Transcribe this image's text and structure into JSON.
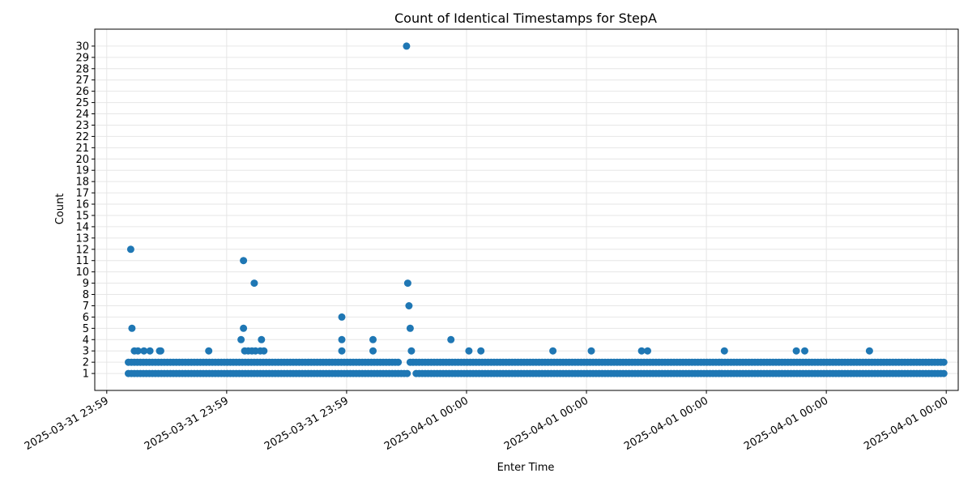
{
  "chart_data": {
    "type": "scatter",
    "title": "Count of Identical Timestamps for StepA",
    "xlabel": "Enter Time",
    "ylabel": "Count",
    "x_tick_labels": [
      "2025-03-31 23:59",
      "2025-03-31 23:59",
      "2025-03-31 23:59",
      "2025-04-01 00:00",
      "2025-04-01 00:00",
      "2025-04-01 00:00",
      "2025-04-01 00:00",
      "2025-04-01 00:00"
    ],
    "x_tick_values": [
      0,
      1,
      2,
      3,
      4,
      5,
      6,
      7
    ],
    "xlim": [
      -0.1,
      7.1
    ],
    "yticks": [
      1,
      2,
      3,
      4,
      5,
      6,
      7,
      8,
      9,
      10,
      11,
      12,
      13,
      14,
      15,
      16,
      17,
      18,
      19,
      20,
      21,
      22,
      23,
      24,
      25,
      26,
      27,
      28,
      29,
      30
    ],
    "ylim": [
      -0.5,
      31.5
    ],
    "grid": true,
    "color": "#1f77b4",
    "x_note": "x values are positions on the time axis in units of one major tick interval from the first tick",
    "baseline": {
      "x_range": [
        0.18,
        7.0
      ],
      "levels": [
        1,
        2
      ],
      "gaps": [
        [
          2.44,
          2.52
        ],
        [
          2.52,
          2.56
        ]
      ]
    },
    "points": [
      [
        0.2,
        12
      ],
      [
        0.21,
        5
      ],
      [
        0.23,
        3
      ],
      [
        0.26,
        3
      ],
      [
        0.31,
        3
      ],
      [
        0.36,
        3
      ],
      [
        0.44,
        3
      ],
      [
        0.45,
        3
      ],
      [
        0.85,
        3
      ],
      [
        1.12,
        4
      ],
      [
        1.14,
        11
      ],
      [
        1.14,
        5
      ],
      [
        1.15,
        3
      ],
      [
        1.18,
        3
      ],
      [
        1.21,
        3
      ],
      [
        1.23,
        9
      ],
      [
        1.24,
        3
      ],
      [
        1.28,
        3
      ],
      [
        1.29,
        4
      ],
      [
        1.31,
        3
      ],
      [
        1.96,
        6
      ],
      [
        1.96,
        4
      ],
      [
        1.96,
        3
      ],
      [
        2.22,
        4
      ],
      [
        2.22,
        3
      ],
      [
        2.5,
        30
      ],
      [
        2.51,
        9
      ],
      [
        2.52,
        7
      ],
      [
        2.53,
        5
      ],
      [
        2.54,
        3
      ],
      [
        2.87,
        4
      ],
      [
        3.02,
        3
      ],
      [
        3.12,
        3
      ],
      [
        3.72,
        3
      ],
      [
        4.04,
        3
      ],
      [
        4.46,
        3
      ],
      [
        4.51,
        3
      ],
      [
        5.15,
        3
      ],
      [
        5.75,
        3
      ],
      [
        5.82,
        3
      ],
      [
        6.36,
        3
      ]
    ]
  }
}
